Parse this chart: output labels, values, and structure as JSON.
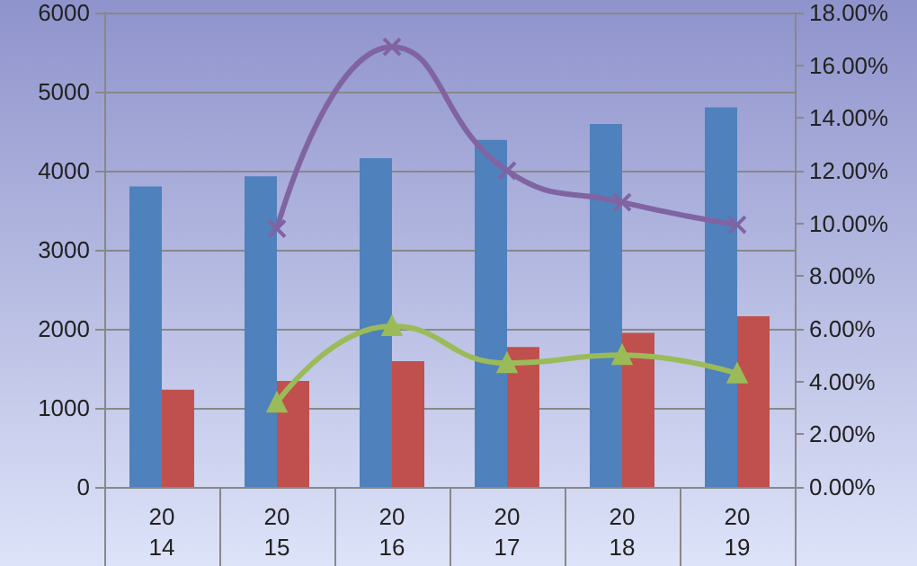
{
  "chart_data": {
    "type": "bar",
    "categories": [
      "20\n14",
      "20\n15",
      "20\n16",
      "20\n17",
      "20\n18",
      "20\n19"
    ],
    "series": [
      {
        "color": "#4f81bd",
        "values": [
          3800,
          3930,
          4160,
          4390,
          4590,
          4800
        ]
      },
      {
        "color": "#c0504d",
        "values": [
          1230,
          1340,
          1590,
          1770,
          1950,
          2160
        ]
      },
      {
        "type": "line",
        "axis": "y2",
        "color": "#8064a2",
        "marker": "cross",
        "values": [
          null,
          9.8,
          16.7,
          12.0,
          10.8,
          9.95
        ]
      },
      {
        "type": "line",
        "axis": "y2",
        "color": "#9bbb59",
        "marker": "triangle",
        "values": [
          null,
          3.2,
          6.1,
          4.7,
          5.0,
          4.3
        ]
      }
    ],
    "ylim": [
      0,
      6000
    ],
    "yticks": [
      0,
      1000,
      2000,
      3000,
      4000,
      5000,
      6000
    ],
    "y2lim": [
      0,
      18
    ],
    "y2ticks": [
      {
        "value": 0,
        "label": "0.00%"
      },
      {
        "value": 2,
        "label": "2.00%"
      },
      {
        "value": 4,
        "label": "4.00%"
      },
      {
        "value": 6,
        "label": "6.00%"
      },
      {
        "value": 8,
        "label": "8.00%"
      },
      {
        "value": 10,
        "label": "10.00%"
      },
      {
        "value": 12,
        "label": "12.00%"
      },
      {
        "value": 14,
        "label": "14.00%"
      },
      {
        "value": 16,
        "label": "16.00%"
      },
      {
        "value": 18,
        "label": "18.00%"
      }
    ],
    "grid": "y"
  }
}
